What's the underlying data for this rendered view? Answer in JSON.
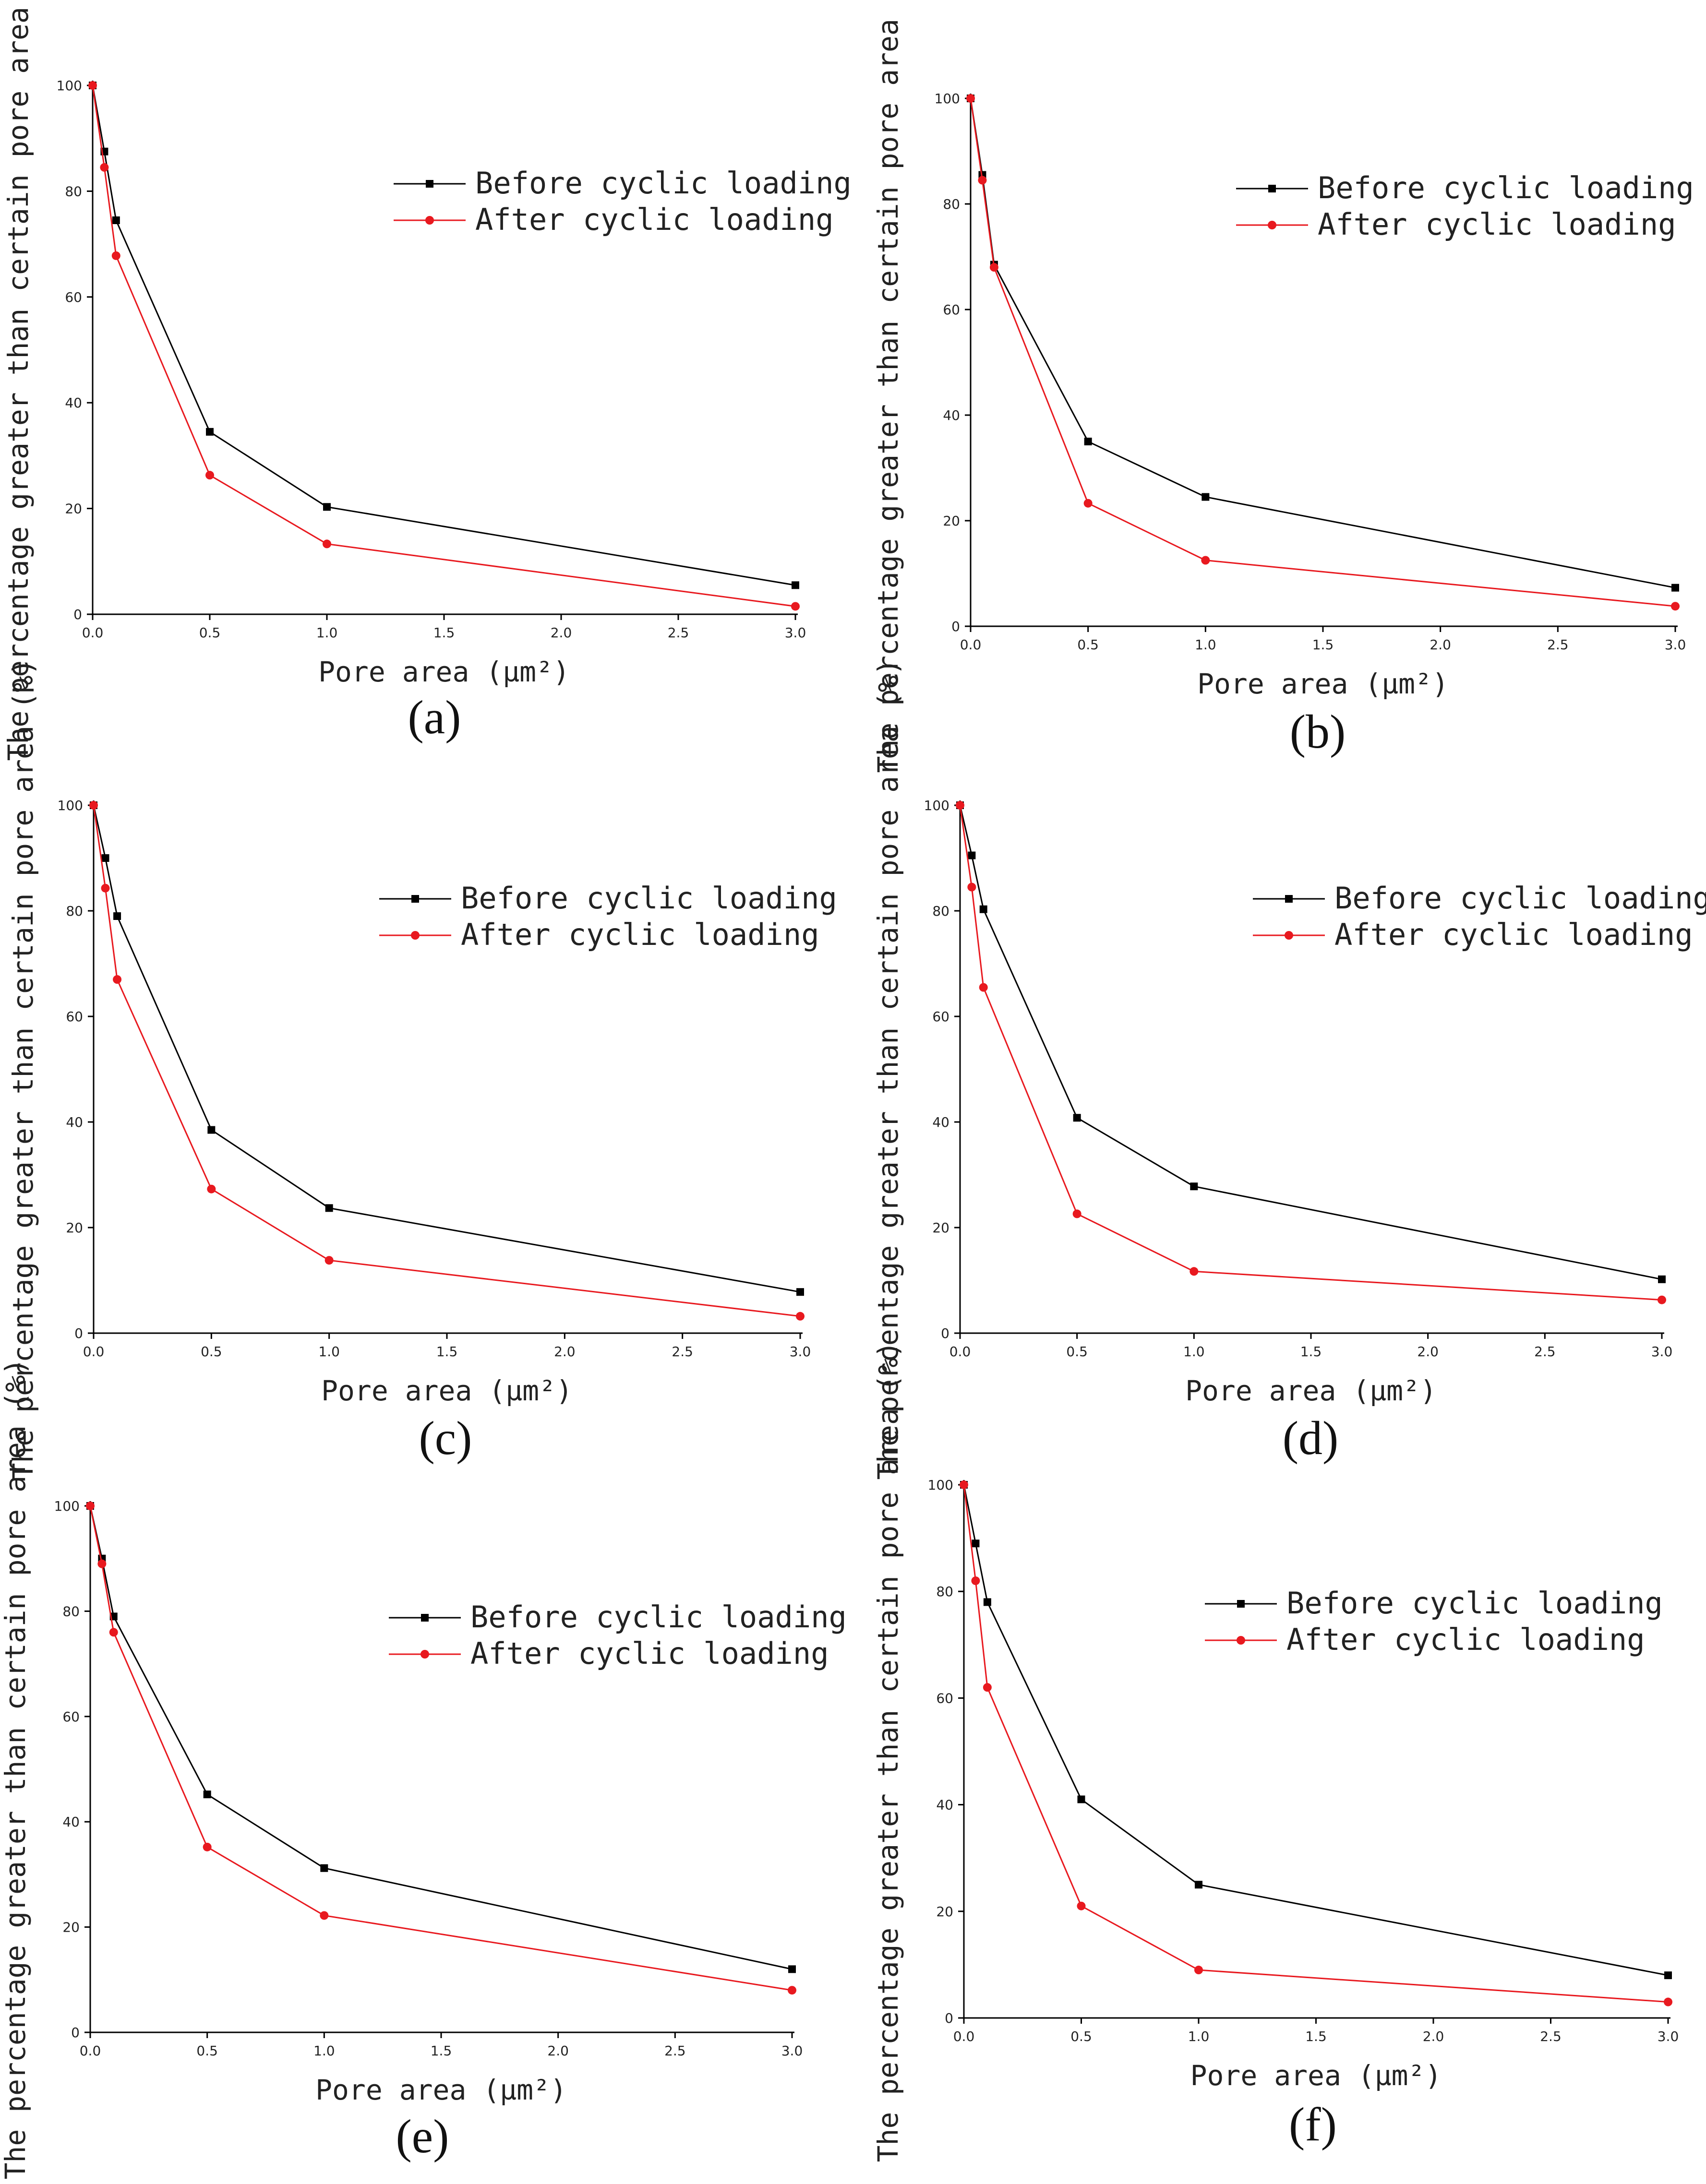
{
  "figure": {
    "legend_labels": [
      "Before cyclic loading",
      "After cyclic loading"
    ],
    "series_colors": [
      "#000000",
      "#e8191f"
    ]
  },
  "chart_data": [
    {
      "panel": "(a)",
      "type": "line",
      "xlabel": "Pore area (μm²)",
      "ylabel": "The percentage greater than certain pore area (%)",
      "xlim": [
        0,
        3
      ],
      "ylim": [
        0,
        100
      ],
      "xticks": [
        "0.0",
        "0.5",
        "1.0",
        "1.5",
        "2.0",
        "2.5",
        "3.0"
      ],
      "yticks": [
        "0",
        "20",
        "40",
        "60",
        "80",
        "100"
      ],
      "legend_position": "top-right",
      "x": [
        0.0,
        0.05,
        0.1,
        0.5,
        1.0,
        3.0
      ],
      "series": [
        {
          "name": "Before cyclic loading",
          "values": [
            100,
            87.5,
            74.5,
            34.5,
            20.3,
            5.5
          ]
        },
        {
          "name": "After cyclic loading",
          "values": [
            100,
            84.5,
            67.8,
            26.3,
            13.3,
            1.5
          ]
        }
      ]
    },
    {
      "panel": "(b)",
      "type": "line",
      "xlabel": "Pore area (μm²)",
      "ylabel": "The percentage greater than certain pore area (%)",
      "xlim": [
        0,
        3
      ],
      "ylim": [
        0,
        100
      ],
      "xticks": [
        "0.0",
        "0.5",
        "1.0",
        "1.5",
        "2.0",
        "2.5",
        "3.0"
      ],
      "yticks": [
        "0",
        "20",
        "40",
        "60",
        "80",
        "100"
      ],
      "legend_position": "top-right",
      "x": [
        0.0,
        0.05,
        0.1,
        0.5,
        1.0,
        3.0
      ],
      "series": [
        {
          "name": "Before cyclic loading",
          "values": [
            100,
            85.5,
            68.5,
            35.0,
            24.5,
            7.3
          ]
        },
        {
          "name": "After cyclic loading",
          "values": [
            100,
            84.5,
            68.0,
            23.3,
            12.5,
            3.8
          ]
        }
      ]
    },
    {
      "panel": "(c)",
      "type": "line",
      "xlabel": "Pore area (μm²)",
      "ylabel": "The percentage greater than certain pore area (%)",
      "xlim": [
        0,
        3
      ],
      "ylim": [
        0,
        100
      ],
      "xticks": [
        "0.0",
        "0.5",
        "1.0",
        "1.5",
        "2.0",
        "2.5",
        "3.0"
      ],
      "yticks": [
        "0",
        "20",
        "40",
        "60",
        "80",
        "100"
      ],
      "legend_position": "top-right",
      "x": [
        0.0,
        0.05,
        0.1,
        0.5,
        1.0,
        3.0
      ],
      "series": [
        {
          "name": "Before cyclic loading",
          "values": [
            100,
            90.0,
            79.0,
            38.5,
            23.7,
            7.8
          ]
        },
        {
          "name": "After cyclic loading",
          "values": [
            100,
            84.3,
            67.0,
            27.3,
            13.8,
            3.2
          ]
        }
      ]
    },
    {
      "panel": "(d)",
      "type": "line",
      "xlabel": "Pore area (μm²)",
      "ylabel": "The percentage greater than certain pore area (%)",
      "xlim": [
        0,
        3
      ],
      "ylim": [
        0,
        100
      ],
      "xticks": [
        "0.0",
        "0.5",
        "1.0",
        "1.5",
        "2.0",
        "2.5",
        "3.0"
      ],
      "yticks": [
        "0",
        "20",
        "40",
        "60",
        "80",
        "100"
      ],
      "legend_position": "top-right",
      "x": [
        0.0,
        0.05,
        0.1,
        0.5,
        1.0,
        3.0
      ],
      "series": [
        {
          "name": "Before cyclic loading",
          "values": [
            100,
            90.5,
            80.3,
            40.8,
            27.8,
            10.2
          ]
        },
        {
          "name": "After cyclic loading",
          "values": [
            100,
            84.5,
            65.5,
            22.6,
            11.7,
            6.3
          ]
        }
      ]
    },
    {
      "panel": "(e)",
      "type": "line",
      "xlabel": "Pore area (μm²)",
      "ylabel": "The percentage greater than certain pore area (%)",
      "xlim": [
        0,
        3
      ],
      "ylim": [
        0,
        100
      ],
      "xticks": [
        "0.0",
        "0.5",
        "1.0",
        "1.5",
        "2.0",
        "2.5",
        "3.0"
      ],
      "yticks": [
        "0",
        "20",
        "40",
        "60",
        "80",
        "100"
      ],
      "legend_position": "top-right",
      "x": [
        0.0,
        0.05,
        0.1,
        0.5,
        1.0,
        3.0
      ],
      "series": [
        {
          "name": "Before cyclic loading",
          "values": [
            100,
            90.0,
            79.0,
            45.2,
            31.2,
            12.0
          ]
        },
        {
          "name": "After cyclic loading",
          "values": [
            100,
            89.0,
            76.0,
            35.2,
            22.2,
            8.0
          ]
        }
      ]
    },
    {
      "panel": "(f)",
      "type": "line",
      "xlabel": "Pore area (μm²)",
      "ylabel": "The percentage greater than certain pore area (%)",
      "xlim": [
        0,
        3
      ],
      "ylim": [
        0,
        100
      ],
      "xticks": [
        "0.0",
        "0.5",
        "1.0",
        "1.5",
        "2.0",
        "2.5",
        "3.0"
      ],
      "yticks": [
        "0",
        "20",
        "40",
        "60",
        "80",
        "100"
      ],
      "legend_position": "top-right",
      "x": [
        0.0,
        0.05,
        0.1,
        0.5,
        1.0,
        3.0
      ],
      "series": [
        {
          "name": "Before cyclic loading",
          "values": [
            100,
            89.0,
            78.0,
            41.0,
            25.0,
            8.0
          ]
        },
        {
          "name": "After cyclic loading",
          "values": [
            100,
            82.0,
            62.0,
            21.0,
            9.0,
            3.0
          ]
        }
      ]
    }
  ]
}
